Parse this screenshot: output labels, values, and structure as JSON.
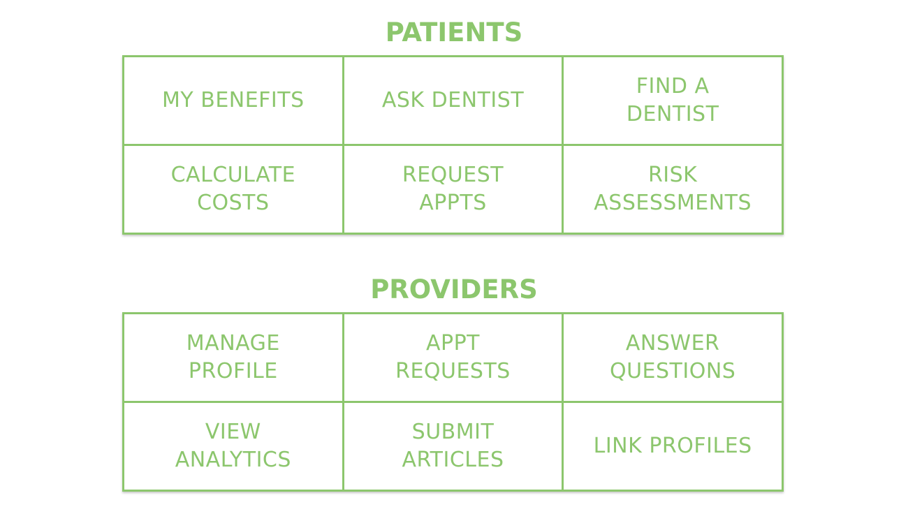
{
  "colors": {
    "accent": "#8cc66d",
    "background": "#ffffff"
  },
  "patients": {
    "title": "PATIENTS",
    "rows": [
      [
        {
          "lines": [
            "MY BENEFITS"
          ]
        },
        {
          "lines": [
            "ASK DENTIST"
          ]
        },
        {
          "lines": [
            "FIND A",
            "DENTIST"
          ]
        }
      ],
      [
        {
          "lines": [
            "CALCULATE",
            "COSTS"
          ]
        },
        {
          "lines": [
            "REQUEST",
            "APPTS"
          ]
        },
        {
          "lines": [
            "RISK",
            "ASSESSMENTS"
          ]
        }
      ]
    ]
  },
  "providers": {
    "title": "PROVIDERS",
    "rows": [
      [
        {
          "lines": [
            "MANAGE",
            "PROFILE"
          ]
        },
        {
          "lines": [
            "APPT",
            "REQUESTS"
          ]
        },
        {
          "lines": [
            "ANSWER",
            "QUESTIONS"
          ]
        }
      ],
      [
        {
          "lines": [
            "VIEW",
            "ANALYTICS"
          ]
        },
        {
          "lines": [
            "SUBMIT",
            "ARTICLES"
          ]
        },
        {
          "lines": [
            "LINK PROFILES"
          ]
        }
      ]
    ]
  }
}
